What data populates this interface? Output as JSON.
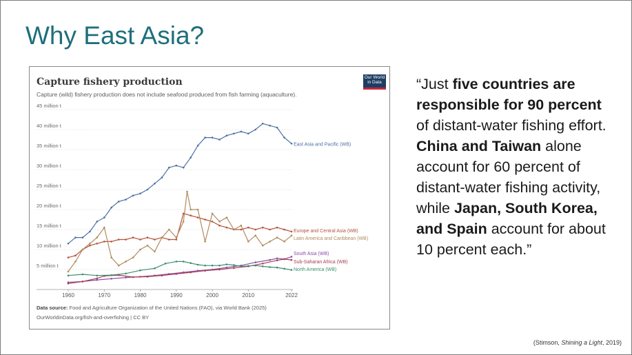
{
  "slide": {
    "title": "Why East Asia?",
    "quote_parts": [
      {
        "text": "“Just ",
        "bold": false
      },
      {
        "text": "five countries are responsible for 90 percent",
        "bold": true
      },
      {
        "text": " of distant-water fishing effort. ",
        "bold": false
      },
      {
        "text": "China and Taiwan",
        "bold": true
      },
      {
        "text": " alone account for 60 percent of distant-water fishing activity, while ",
        "bold": false
      },
      {
        "text": "Japan, South Korea, and Spain",
        "bold": true
      },
      {
        "text": " account for about 10 percent each.”",
        "bold": false
      }
    ],
    "citation_pre": "(Stimson, ",
    "citation_title": "Shining a Light",
    "citation_post": ", 2019)"
  },
  "owid_logo": "Our World in Data",
  "source": {
    "label": "Data source:",
    "text": " Food and Agriculture Organization of the United Nations (FAO), via World Bank (2025)",
    "line2": "OurWorldinData.org/fish-and-overfishing | CC BY"
  },
  "chart_data": {
    "type": "line",
    "title": "Capture fishery production",
    "subtitle": "Capture (wild) fishery production does not include seafood produced from fish farming (aquaculture).",
    "ylim": [
      0,
      45
    ],
    "xlim": [
      1960,
      2022
    ],
    "x_ticks": [
      1960,
      1970,
      1980,
      1990,
      2000,
      2010,
      2022
    ],
    "y_ticks": [
      {
        "value": 0,
        "label": ""
      },
      {
        "value": 5,
        "label": "5 million t"
      },
      {
        "value": 10,
        "label": "10 million t"
      },
      {
        "value": 15,
        "label": "15 million t"
      },
      {
        "value": 20,
        "label": "20 million t"
      },
      {
        "value": 25,
        "label": "25 million t"
      },
      {
        "value": 30,
        "label": "30 million t"
      },
      {
        "value": 35,
        "label": "35 million t"
      },
      {
        "value": 40,
        "label": "40 million t"
      },
      {
        "value": 45,
        "label": "45 million t"
      }
    ],
    "series": [
      {
        "name": "East Asia and Pacific (WB)",
        "color": "#4c6fa5",
        "points": [
          [
            1960,
            11.5
          ],
          [
            1962,
            13
          ],
          [
            1964,
            13
          ],
          [
            1966,
            14.5
          ],
          [
            1968,
            17
          ],
          [
            1970,
            18
          ],
          [
            1972,
            20.5
          ],
          [
            1974,
            22
          ],
          [
            1976,
            22.5
          ],
          [
            1978,
            23.5
          ],
          [
            1980,
            24
          ],
          [
            1982,
            25
          ],
          [
            1984,
            26.5
          ],
          [
            1986,
            28
          ],
          [
            1988,
            30.5
          ],
          [
            1990,
            31
          ],
          [
            1992,
            30.5
          ],
          [
            1994,
            33
          ],
          [
            1996,
            36
          ],
          [
            1998,
            38
          ],
          [
            2000,
            38
          ],
          [
            2002,
            37.5
          ],
          [
            2004,
            38.5
          ],
          [
            2006,
            39
          ],
          [
            2008,
            39.5
          ],
          [
            2010,
            39
          ],
          [
            2012,
            40
          ],
          [
            2014,
            41.5
          ],
          [
            2016,
            41
          ],
          [
            2018,
            40.5
          ],
          [
            2020,
            38
          ],
          [
            2022,
            36.5
          ]
        ]
      },
      {
        "name": "Europe and Central Asia (WB)",
        "color": "#b5513a",
        "points": [
          [
            1960,
            8
          ],
          [
            1962,
            8.5
          ],
          [
            1964,
            10
          ],
          [
            1966,
            11
          ],
          [
            1968,
            11.5
          ],
          [
            1970,
            12
          ],
          [
            1972,
            12
          ],
          [
            1974,
            12.5
          ],
          [
            1976,
            12.5
          ],
          [
            1978,
            13
          ],
          [
            1980,
            12.5
          ],
          [
            1982,
            13
          ],
          [
            1984,
            12.5
          ],
          [
            1986,
            13
          ],
          [
            1988,
            12.5
          ],
          [
            1990,
            12.5
          ],
          [
            1992,
            19
          ],
          [
            1994,
            18.5
          ],
          [
            1996,
            18
          ],
          [
            1998,
            17.5
          ],
          [
            2000,
            17
          ],
          [
            2002,
            16
          ],
          [
            2004,
            15.5
          ],
          [
            2006,
            15
          ],
          [
            2008,
            15
          ],
          [
            2010,
            15.5
          ],
          [
            2012,
            15
          ],
          [
            2014,
            15.5
          ],
          [
            2016,
            15
          ],
          [
            2018,
            15.5
          ],
          [
            2020,
            15
          ],
          [
            2022,
            14.5
          ]
        ]
      },
      {
        "name": "Latin America and Caribbean (WB)",
        "color": "#b08a5a",
        "points": [
          [
            1960,
            4.5
          ],
          [
            1962,
            7
          ],
          [
            1964,
            10
          ],
          [
            1966,
            11.5
          ],
          [
            1968,
            13
          ],
          [
            1970,
            15.5
          ],
          [
            1972,
            8
          ],
          [
            1974,
            6
          ],
          [
            1976,
            7
          ],
          [
            1978,
            8
          ],
          [
            1980,
            10
          ],
          [
            1982,
            11
          ],
          [
            1984,
            9.5
          ],
          [
            1986,
            13
          ],
          [
            1988,
            15
          ],
          [
            1990,
            13
          ],
          [
            1992,
            17
          ],
          [
            1993,
            24.5
          ],
          [
            1994,
            20
          ],
          [
            1996,
            20
          ],
          [
            1998,
            12
          ],
          [
            2000,
            19
          ],
          [
            2002,
            17
          ],
          [
            2004,
            18
          ],
          [
            2006,
            15
          ],
          [
            2008,
            16
          ],
          [
            2010,
            12
          ],
          [
            2012,
            13.5
          ],
          [
            2014,
            11
          ],
          [
            2016,
            12
          ],
          [
            2018,
            13
          ],
          [
            2020,
            12
          ],
          [
            2022,
            13.5
          ]
        ]
      },
      {
        "name": "South Asia (WB)",
        "color": "#8a4ca3",
        "points": [
          [
            1960,
            1.8
          ],
          [
            1964,
            2
          ],
          [
            1968,
            2.4
          ],
          [
            1972,
            2.7
          ],
          [
            1976,
            3
          ],
          [
            1980,
            3.2
          ],
          [
            1984,
            3.5
          ],
          [
            1988,
            3.9
          ],
          [
            1992,
            4.3
          ],
          [
            1996,
            4.7
          ],
          [
            2000,
            5
          ],
          [
            2004,
            5.5
          ],
          [
            2008,
            6
          ],
          [
            2012,
            6.8
          ],
          [
            2016,
            7.4
          ],
          [
            2018,
            7.8
          ],
          [
            2020,
            7.6
          ],
          [
            2022,
            8.2
          ]
        ]
      },
      {
        "name": "Sub-Saharan Africa (WB)",
        "color": "#a83d52",
        "points": [
          [
            1960,
            1.5
          ],
          [
            1964,
            2
          ],
          [
            1968,
            2.8
          ],
          [
            1970,
            3.4
          ],
          [
            1974,
            3.6
          ],
          [
            1978,
            3.1
          ],
          [
            1982,
            3.2
          ],
          [
            1986,
            3.5
          ],
          [
            1990,
            3.9
          ],
          [
            1994,
            4.3
          ],
          [
            1998,
            4.7
          ],
          [
            2002,
            5
          ],
          [
            2006,
            5.4
          ],
          [
            2010,
            5.8
          ],
          [
            2014,
            6.5
          ],
          [
            2018,
            7.3
          ],
          [
            2020,
            7.6
          ],
          [
            2022,
            7.4
          ]
        ]
      },
      {
        "name": "North America (WB)",
        "color": "#3d8b6e",
        "points": [
          [
            1960,
            3.5
          ],
          [
            1964,
            3.8
          ],
          [
            1968,
            3.5
          ],
          [
            1972,
            3.6
          ],
          [
            1976,
            4
          ],
          [
            1980,
            4.8
          ],
          [
            1984,
            5.3
          ],
          [
            1987,
            6.5
          ],
          [
            1990,
            7
          ],
          [
            1992,
            7
          ],
          [
            1994,
            6.6
          ],
          [
            1996,
            6.2
          ],
          [
            1998,
            6
          ],
          [
            2000,
            6
          ],
          [
            2002,
            6
          ],
          [
            2004,
            6.3
          ],
          [
            2006,
            6.1
          ],
          [
            2008,
            5.8
          ],
          [
            2010,
            5.9
          ],
          [
            2012,
            6
          ],
          [
            2014,
            5.8
          ],
          [
            2016,
            5.6
          ],
          [
            2018,
            5.5
          ],
          [
            2020,
            5.2
          ],
          [
            2022,
            4.9
          ]
        ]
      }
    ]
  }
}
